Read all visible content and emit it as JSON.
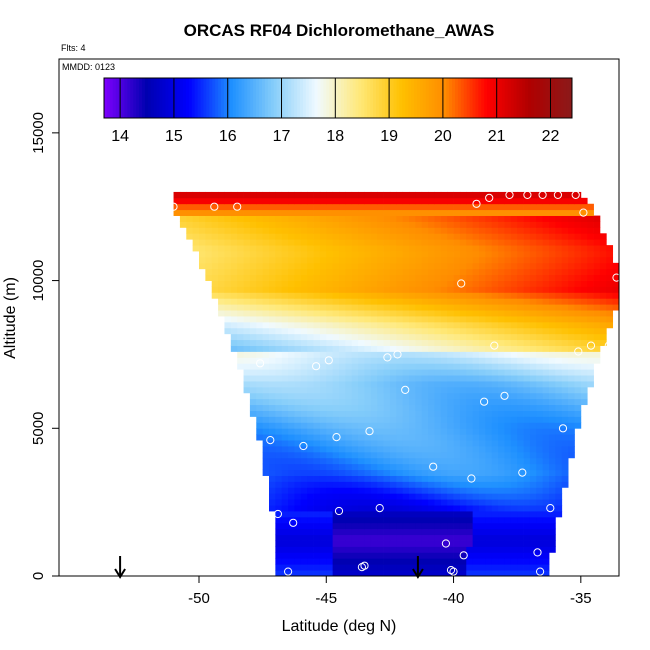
{
  "chart_data": {
    "type": "heatmap",
    "title": "ORCAS RF04 Dichloromethane_AWAS",
    "flights_note": "Flts: 4",
    "date_note": "MMDD: 0123",
    "xlabel": "Latitude (deg N)",
    "ylabel": "Altitude (m)",
    "xlim": [
      -55.5,
      -33.5
    ],
    "ylim": [
      0,
      17500
    ],
    "xticks": [
      -50,
      -45,
      -40,
      -35
    ],
    "xtick_labels": [
      "-50",
      "-45",
      "-40",
      "-35"
    ],
    "yticks": [
      0,
      5000,
      10000,
      15000
    ],
    "ytick_labels": [
      "0",
      "5000",
      "10000",
      "15000"
    ],
    "colorbar": {
      "min": 13.7,
      "max": 22.4,
      "ticks": [
        14,
        15,
        16,
        17,
        18,
        19,
        20,
        21,
        22
      ],
      "tick_labels": [
        "14",
        "15",
        "16",
        "17",
        "18",
        "19",
        "20",
        "21",
        "22"
      ],
      "colors": [
        "#7f00ff",
        "#0000b0",
        "#0000ff",
        "#1e90ff",
        "#87cefa",
        "#f0faff",
        "#ffe97a",
        "#ffc000",
        "#ff8c00",
        "#ff0000",
        "#b00000",
        "#8b1a1a"
      ]
    },
    "curtain": {
      "lat_min": -51.0,
      "lat_max": -33.5,
      "bottom_alt": 0,
      "left_edge": [
        [
          0,
          -46.9
        ],
        [
          2000,
          -47.1
        ],
        [
          4500,
          -47.6
        ],
        [
          7000,
          -48.4
        ],
        [
          9500,
          -49.4
        ],
        [
          11500,
          -50.4
        ],
        [
          12500,
          -51.0
        ]
      ],
      "right_edge": [
        [
          0,
          -36.3
        ],
        [
          2000,
          -35.9
        ],
        [
          5000,
          -35.1
        ],
        [
          7500,
          -34.3
        ],
        [
          9000,
          -33.6
        ],
        [
          10500,
          -33.6
        ],
        [
          12500,
          -34.5
        ],
        [
          13000,
          -35.1
        ]
      ],
      "layers": [
        {
          "alt": 0,
          "value": 15.3
        },
        {
          "alt": 1200,
          "value": 14.6
        },
        {
          "alt": 2200,
          "value": 15.2
        },
        {
          "alt": 3500,
          "value": 16.0
        },
        {
          "alt": 5000,
          "value": 16.3
        },
        {
          "alt": 6500,
          "value": 16.8
        },
        {
          "alt": 7600,
          "value": 17.6
        },
        {
          "alt": 8500,
          "value": 18.4
        },
        {
          "alt": 9700,
          "value": 19.8
        },
        {
          "alt": 11000,
          "value": 19.5
        },
        {
          "alt": 12400,
          "value": 20.0
        },
        {
          "alt": 12800,
          "value": 21.2
        }
      ]
    },
    "samples": [
      {
        "lat": -46.5,
        "alt": 150
      },
      {
        "lat": -43.6,
        "alt": 300
      },
      {
        "lat": -43.5,
        "alt": 350
      },
      {
        "lat": -40.0,
        "alt": 150
      },
      {
        "lat": -40.1,
        "alt": 200
      },
      {
        "lat": -36.6,
        "alt": 150
      },
      {
        "lat": -36.7,
        "alt": 800
      },
      {
        "lat": -39.6,
        "alt": 700
      },
      {
        "lat": -40.3,
        "alt": 1100
      },
      {
        "lat": -46.9,
        "alt": 2100
      },
      {
        "lat": -46.3,
        "alt": 1800
      },
      {
        "lat": -44.5,
        "alt": 2200
      },
      {
        "lat": -42.9,
        "alt": 2300
      },
      {
        "lat": -36.2,
        "alt": 2300
      },
      {
        "lat": -39.3,
        "alt": 3300
      },
      {
        "lat": -40.8,
        "alt": 3700
      },
      {
        "lat": -37.3,
        "alt": 3500
      },
      {
        "lat": -47.2,
        "alt": 4600
      },
      {
        "lat": -45.9,
        "alt": 4400
      },
      {
        "lat": -44.6,
        "alt": 4700
      },
      {
        "lat": -43.3,
        "alt": 4900
      },
      {
        "lat": -35.7,
        "alt": 5000
      },
      {
        "lat": -38.8,
        "alt": 5900
      },
      {
        "lat": -38.0,
        "alt": 6100
      },
      {
        "lat": -41.9,
        "alt": 6300
      },
      {
        "lat": -47.6,
        "alt": 7200
      },
      {
        "lat": -45.4,
        "alt": 7100
      },
      {
        "lat": -44.9,
        "alt": 7300
      },
      {
        "lat": -42.6,
        "alt": 7400
      },
      {
        "lat": -35.1,
        "alt": 7600
      },
      {
        "lat": -34.6,
        "alt": 7800
      },
      {
        "lat": -33.9,
        "alt": 7800
      },
      {
        "lat": -38.4,
        "alt": 7800
      },
      {
        "lat": -42.2,
        "alt": 7500
      },
      {
        "lat": -39.7,
        "alt": 9900
      },
      {
        "lat": -33.6,
        "alt": 10100
      },
      {
        "lat": -34.9,
        "alt": 12300
      },
      {
        "lat": -39.1,
        "alt": 12600
      },
      {
        "lat": -38.6,
        "alt": 12800
      },
      {
        "lat": -37.8,
        "alt": 12900
      },
      {
        "lat": -37.1,
        "alt": 12900
      },
      {
        "lat": -36.5,
        "alt": 12900
      },
      {
        "lat": -35.9,
        "alt": 12900
      },
      {
        "lat": -35.2,
        "alt": 12900
      },
      {
        "lat": -48.5,
        "alt": 12500
      },
      {
        "lat": -51.0,
        "alt": 12500
      },
      {
        "lat": -49.4,
        "alt": 12500
      }
    ],
    "markers": [
      {
        "label": "arrow",
        "lat": -53.1
      },
      {
        "label": "arrow",
        "lat": -41.4
      }
    ]
  }
}
